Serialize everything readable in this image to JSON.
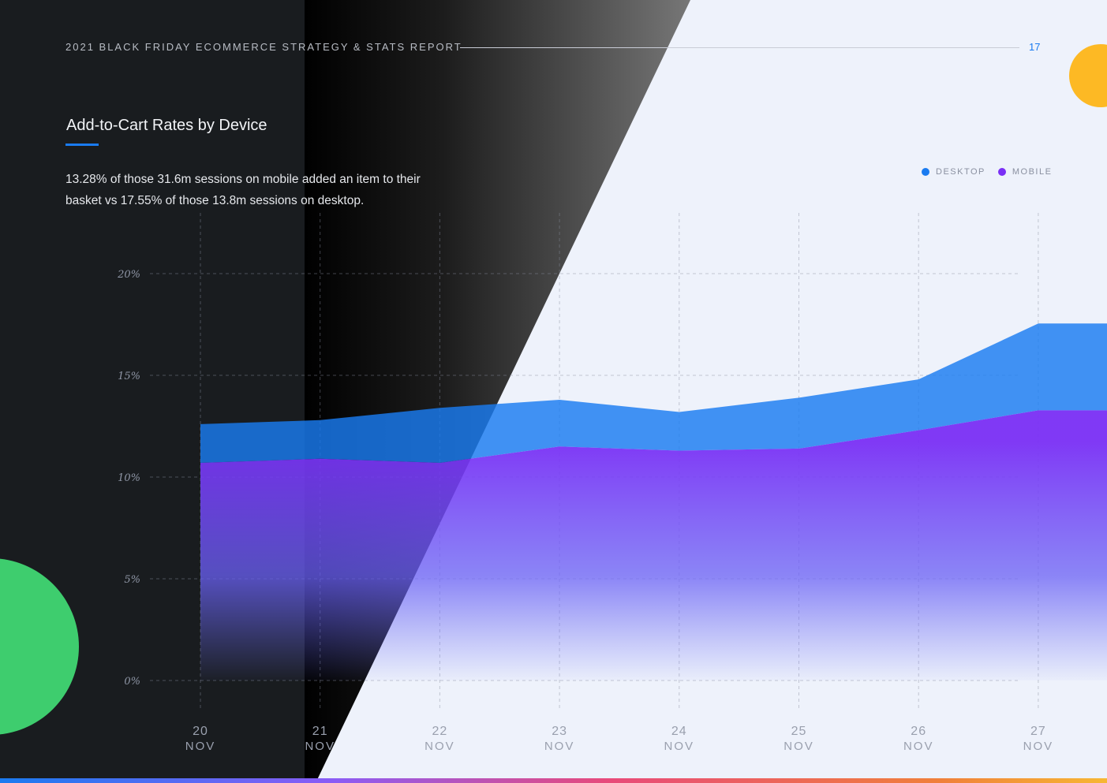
{
  "header": {
    "report_title": "2021 BLACK FRIDAY ECOMMERCE STRATEGY & STATS REPORT",
    "page_number": "17"
  },
  "chart_title": "Add-to-Cart Rates by Device",
  "description": "13.28% of those 31.6m sessions on mobile added an item to their basket vs 17.55% of those 13.8m sessions on desktop.",
  "colors": {
    "desktop": "#1a7bf0",
    "mobile": "#7a2ff5",
    "accent_blue": "#1a7bf0",
    "dark_bg": "#191c1f",
    "light_bg": "#eef2fb",
    "decor_yellow": "#fdb924",
    "decor_green": "#3ecd6e"
  },
  "legend": [
    {
      "label": "DESKTOP",
      "color": "#1a7bf0"
    },
    {
      "label": "MOBILE",
      "color": "#7a2ff5"
    }
  ],
  "chart_data": {
    "type": "area",
    "title": "Add-to-Cart Rates by Device",
    "x_days": [
      "20",
      "21",
      "22",
      "23",
      "24",
      "25",
      "26",
      "27"
    ],
    "x_month": "NOV",
    "y_ticks": [
      "0%",
      "5%",
      "10%",
      "15%",
      "20%"
    ],
    "y_tick_values": [
      0,
      5,
      10,
      15,
      20
    ],
    "ylim": [
      0,
      20
    ],
    "grid": true,
    "legend_position": "top-right",
    "series": [
      {
        "name": "DESKTOP",
        "color": "#1a7bf0",
        "values": [
          12.6,
          12.8,
          13.4,
          13.8,
          13.2,
          13.9,
          14.8,
          17.55
        ]
      },
      {
        "name": "MOBILE",
        "color": "#7a2ff5",
        "values": [
          10.7,
          10.9,
          10.7,
          11.5,
          11.3,
          11.4,
          12.3,
          13.28
        ]
      }
    ]
  }
}
